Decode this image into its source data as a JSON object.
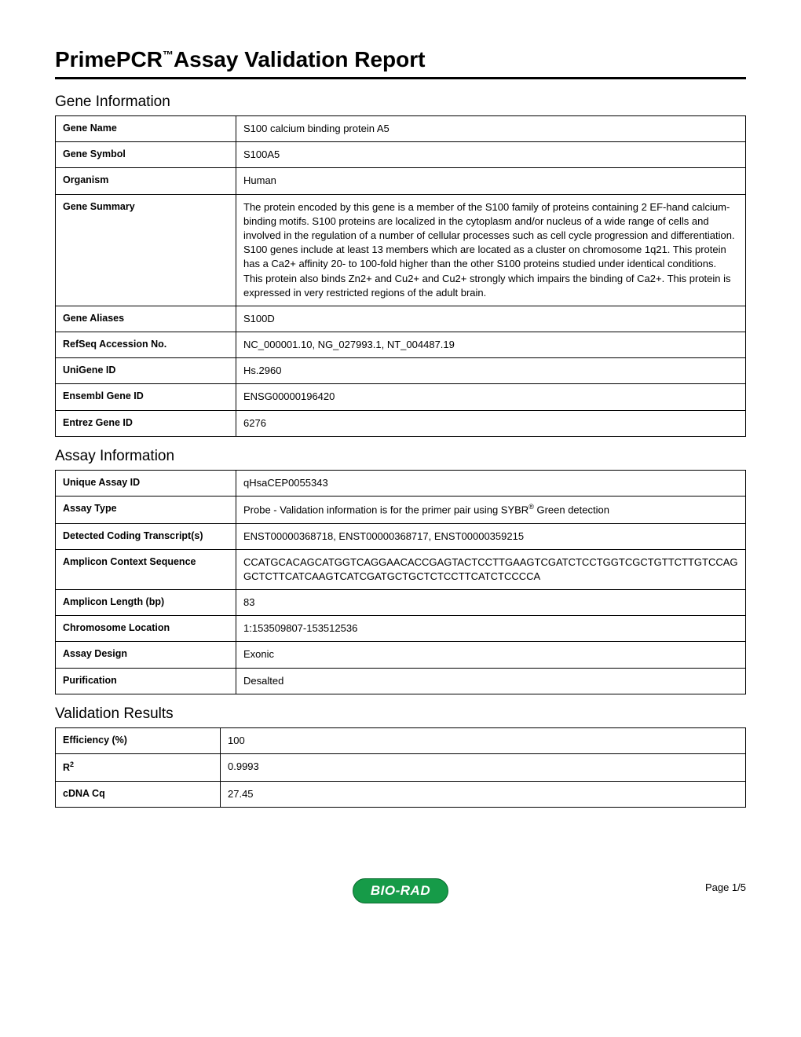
{
  "title_main": "PrimePCR",
  "title_tm": "™",
  "title_rest": "Assay Validation Report",
  "sections": {
    "gene": {
      "header": "Gene Information",
      "rows": [
        {
          "label": "Gene Name",
          "value": "S100 calcium binding protein A5"
        },
        {
          "label": "Gene Symbol",
          "value": "S100A5"
        },
        {
          "label": "Organism",
          "value": "Human"
        },
        {
          "label": "Gene Summary",
          "value": "The protein encoded by this gene is a member of the S100 family of proteins containing 2 EF-hand calcium-binding motifs. S100 proteins are localized in the cytoplasm and/or nucleus of a wide range of cells and involved in the regulation of a number of cellular processes such as cell cycle progression and differentiation. S100 genes include at least 13 members which are located as a cluster on chromosome 1q21. This protein has a Ca2+ affinity 20- to 100-fold higher than the other S100 proteins studied under identical conditions. This protein also binds Zn2+ and Cu2+ and Cu2+ strongly which impairs the binding of Ca2+. This protein is expressed in very restricted regions of the adult brain."
        },
        {
          "label": "Gene Aliases",
          "value": "S100D"
        },
        {
          "label": "RefSeq Accession No.",
          "value": "NC_000001.10, NG_027993.1, NT_004487.19"
        },
        {
          "label": "UniGene ID",
          "value": "Hs.2960"
        },
        {
          "label": "Ensembl Gene ID",
          "value": "ENSG00000196420"
        },
        {
          "label": "Entrez Gene ID",
          "value": "6276"
        }
      ]
    },
    "assay": {
      "header": "Assay Information",
      "rows": [
        {
          "label": "Unique Assay ID",
          "value": "qHsaCEP0055343"
        },
        {
          "label": "Assay Type",
          "value_pre": "Probe - Validation information is for the primer pair using SYBR",
          "value_sup": "®",
          "value_post": " Green detection"
        },
        {
          "label": "Detected Coding Transcript(s)",
          "value": "ENST00000368718, ENST00000368717, ENST00000359215"
        },
        {
          "label": "Amplicon Context Sequence",
          "value": "CCATGCACAGCATGGTCAGGAACACCGAGTACTCCTTGAAGTCGATCTCCTGGTCGCTGTTCTTGTCCAGGCTCTTCATCAAGTCATCGATGCTGCTCTCCTTCATCTCCCCA"
        },
        {
          "label": "Amplicon Length (bp)",
          "value": "83"
        },
        {
          "label": "Chromosome Location",
          "value": "1:153509807-153512536"
        },
        {
          "label": "Assay Design",
          "value": "Exonic"
        },
        {
          "label": "Purification",
          "value": "Desalted"
        }
      ]
    },
    "results": {
      "header": "Validation Results",
      "rows": [
        {
          "label": "Efficiency (%)",
          "value": "100"
        },
        {
          "label_pre": "R",
          "label_sup": "2",
          "value": "0.9993"
        },
        {
          "label": "cDNA Cq",
          "value": "27.45"
        }
      ]
    }
  },
  "footer": {
    "logo_text": "BIO-RAD",
    "page": "Page 1/5"
  },
  "colors": {
    "logo_bg": "#169b48",
    "logo_border": "#0a6b2f",
    "logo_text": "#ffffff",
    "rule": "#000000",
    "text": "#000000",
    "background": "#ffffff"
  }
}
